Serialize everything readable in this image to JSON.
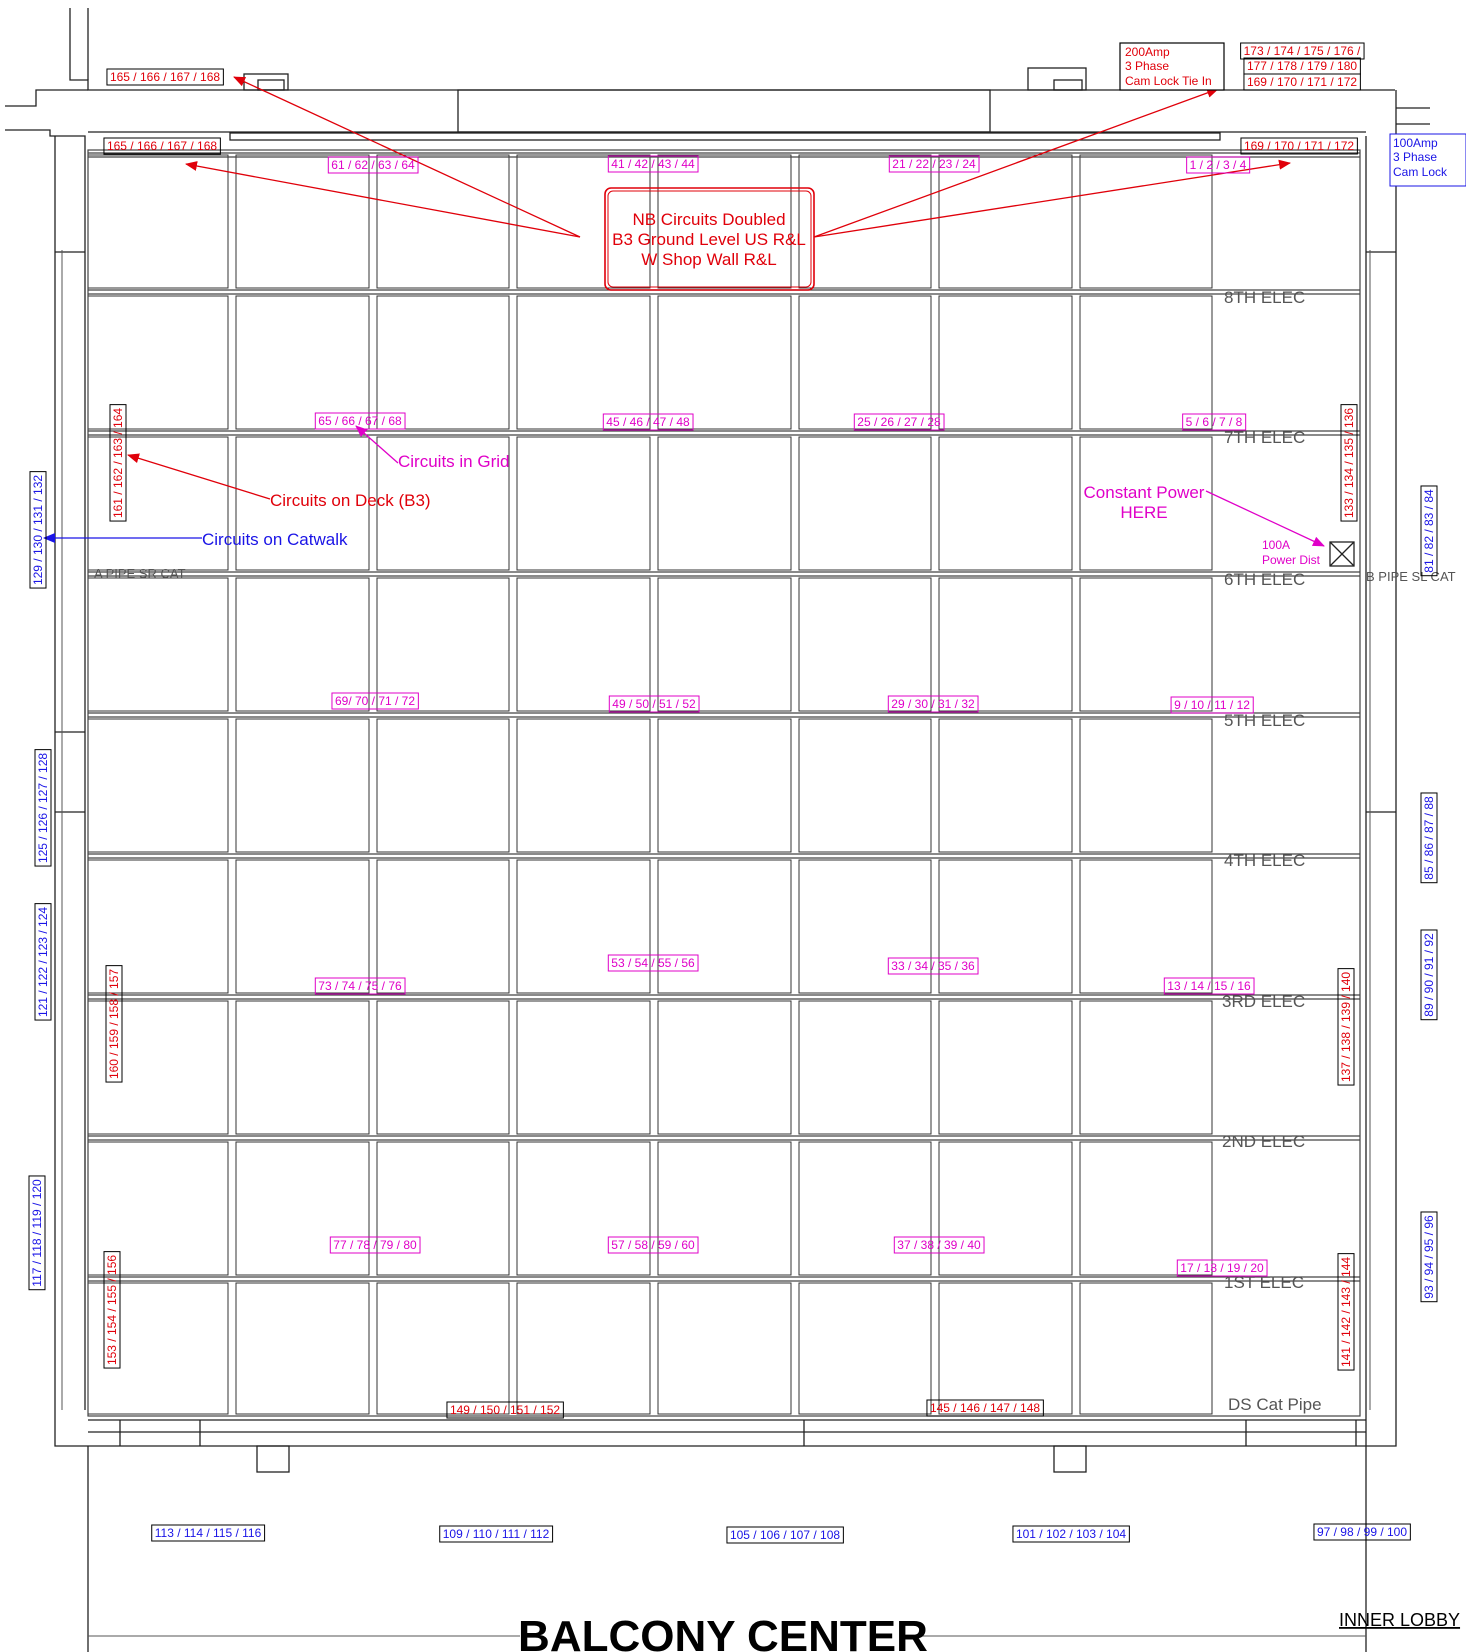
{
  "title": "BALCONY CENTER",
  "corner_label": "INNER LOBBY",
  "pipe_labels": {
    "e8": "8TH ELEC",
    "e7": "7TH ELEC",
    "e6": "6TH ELEC",
    "e5": "5TH ELEC",
    "e4": "4TH ELEC",
    "e3": "3RD ELEC",
    "e2": "2ND ELEC",
    "e1": "1ST ELEC",
    "ds": "DS Cat Pipe",
    "a_pipe": "A PIPE SR CAT",
    "b_pipe": "B PIPE SL CAT"
  },
  "legend": {
    "grid": "Circuits in Grid",
    "deck": "Circuits on Deck (B3)",
    "catwalk": "Circuits on Catwalk",
    "constant_1": "Constant Power",
    "constant_2": "HERE",
    "dist_1": "100A",
    "dist_2": "Power Dist"
  },
  "note": {
    "line1": "NB Circuits Doubled",
    "line2": "B3 Ground Level US R&L",
    "line3": "W Shop Wall R&L"
  },
  "power_boxes": {
    "p200_1": "200Amp",
    "p200_2": "3 Phase",
    "p200_3": "Cam Lock Tie In",
    "p100_1": "100Amp",
    "p100_2": "3 Phase",
    "p100_3": "Cam Lock"
  },
  "circuits": {
    "grid": {
      "c61": "61 / 62 / 63 / 64",
      "c41": "41 / 42 / 43 / 44",
      "c21": "21 / 22 / 23 / 24",
      "c1": "1 / 2 / 3 / 4",
      "c65": "65 / 66 / 67 / 68",
      "c45": "45 / 46 / 47 / 48",
      "c25": "25 / 26 / 27 / 28",
      "c5": "5 / 6 / 7 / 8",
      "c69": "69/ 70 / 71 / 72",
      "c49": "49 / 50 / 51 / 52",
      "c29": "29 / 30 / 31 / 32",
      "c9": "9 / 10 / 11 / 12",
      "c53": "53 / 54 / 55 / 56",
      "c33": "33 / 34 / 35 / 36",
      "c73": "73 / 74 / 75 / 76",
      "c13": "13 / 14 / 15 / 16",
      "c77": "77 / 78 / 79 / 80",
      "c57": "57 / 58 / 59 / 60",
      "c37": "37 / 38 / 39 / 40",
      "c17": "17 / 18 / 19 / 20"
    },
    "deck": {
      "c165a": "165 / 166 / 167 / 168",
      "c165b": "165 / 166 / 167 / 168",
      "c173": "173 / 174 / 175 / 176 /",
      "c177": "177 / 178 / 179 / 180",
      "c169a": "169 / 170 / 171 / 172",
      "c169b": "169 / 170 / 171 / 172",
      "c161": "161 / 162 / 163 / 164",
      "c133": "133 / 134 / 135 / 136",
      "c160": "160 / 159 / 158 / 157",
      "c137": "137 / 138 / 139 / 140",
      "c153": "153 / 154 / 155 / 156",
      "c141": "141 / 142 / 143 / 144",
      "c149": "149 / 150 / 151 / 152",
      "c145": "145 / 146 / 147 / 148"
    },
    "catwalk": {
      "c129": "129 / 130 / 131 / 132",
      "c125": "125 / 126 / 127 / 128",
      "c121": "121 / 122 / 123 / 124",
      "c117": "117 / 118 / 119 / 120",
      "c81": "81 / 82 / 83 / 84",
      "c85": "85 / 86 / 87 / 88",
      "c89": "89 / 90 / 91 / 92",
      "c93": "93 / 94 / 95 / 96",
      "c113": "113 / 114 / 115 / 116",
      "c109": "109 / 110 / 111 / 112",
      "c105": "105 / 106 / 107 / 108",
      "c101": "101 / 102 / 103 / 104",
      "c97": "97 / 98 / 99 / 100"
    }
  },
  "colors": {
    "deck": "#e0000a",
    "grid": "#e000c8",
    "catwalk": "#1a14e6",
    "linework": "#222222"
  }
}
